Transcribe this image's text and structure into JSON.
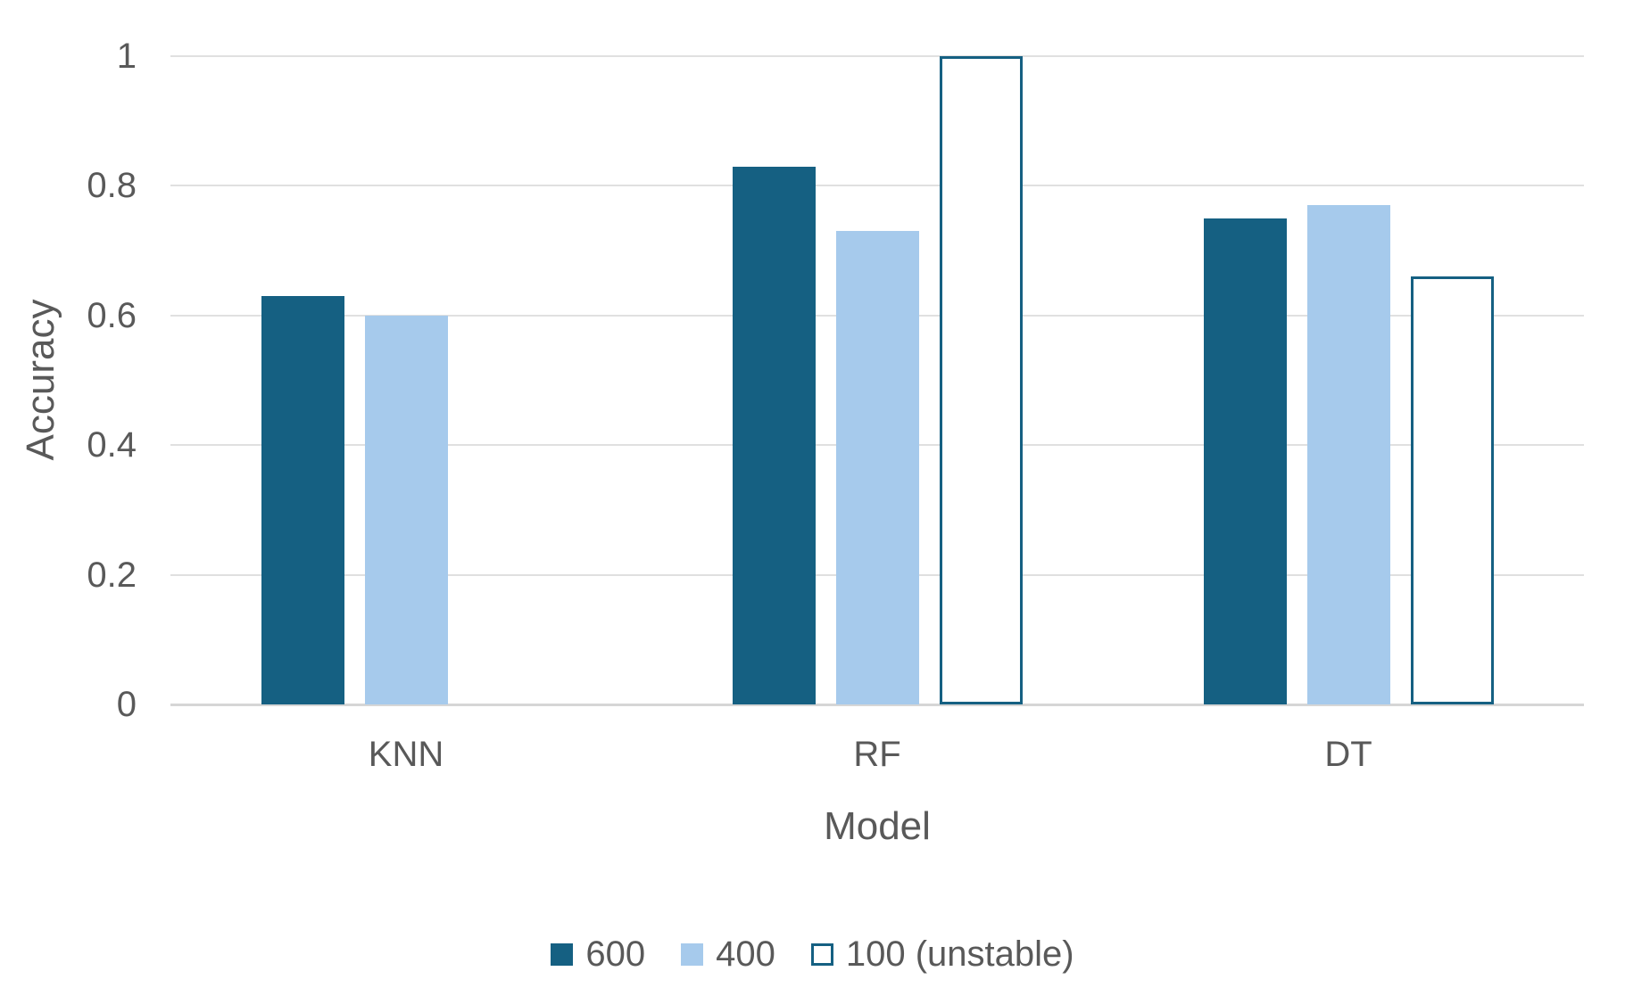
{
  "chart_data": {
    "type": "bar",
    "categories": [
      "KNN",
      "RF",
      "DT"
    ],
    "series": [
      {
        "name": "600",
        "values": [
          0.63,
          0.83,
          0.75
        ],
        "fill": "#156082",
        "border": null
      },
      {
        "name": "400",
        "values": [
          0.6,
          0.73,
          0.77
        ],
        "fill": "#A6CAEC",
        "border": null
      },
      {
        "name": "100 (unstable)",
        "values": [
          null,
          1.0,
          0.66
        ],
        "fill": "#FFFFFF",
        "border": "#156082"
      }
    ],
    "title": "",
    "xlabel": "Model",
    "ylabel": "Accuracy",
    "ylim": [
      0,
      1
    ],
    "yticks": [
      0,
      0.2,
      0.4,
      0.6,
      0.8,
      1
    ],
    "ytick_labels": [
      "0",
      "0.2",
      "0.4",
      "0.6",
      "0.8",
      "1"
    ],
    "grid": "horizontal",
    "legend_position": "bottom"
  },
  "colors": {
    "text": "#595959",
    "gridline": "#e0e0e0",
    "axis_line": "#d6d6d6",
    "background": "#ffffff"
  }
}
